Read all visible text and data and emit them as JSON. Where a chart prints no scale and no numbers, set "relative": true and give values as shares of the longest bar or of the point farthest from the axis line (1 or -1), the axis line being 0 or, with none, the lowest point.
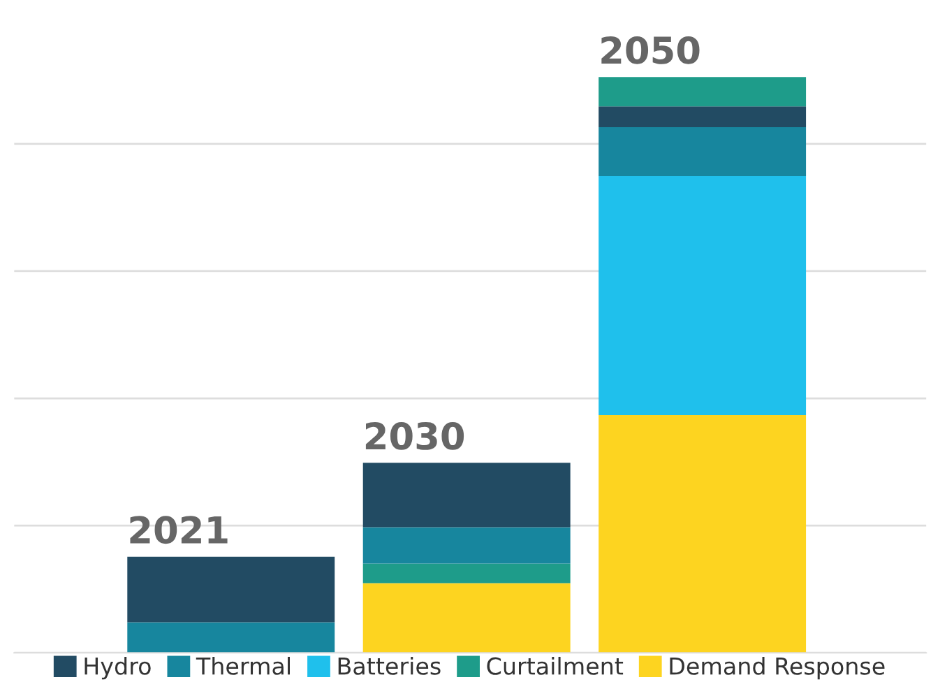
{
  "chart_data": {
    "type": "bar",
    "stacked": true,
    "relative": true,
    "categories": [
      "2021",
      "2030",
      "2050"
    ],
    "series": [
      {
        "name": "Demand Response",
        "color": "#fdd420",
        "values": [
          null,
          0.121,
          0.413
        ]
      },
      {
        "name": "Curtailment",
        "color": "#1e9c8a",
        "values": [
          null,
          0.034,
          null
        ]
      },
      {
        "name": "Batteries",
        "color": "#1fc0ec",
        "values": [
          null,
          null,
          0.415
        ]
      },
      {
        "name": "Thermal",
        "color": "#17869e",
        "values": [
          0.053,
          0.063,
          0.085
        ]
      },
      {
        "name": "Hydro",
        "color": "#224b63",
        "values": [
          0.114,
          0.112,
          0.036
        ]
      },
      {
        "color": "#1e9c8a",
        "values": [
          null,
          null,
          0.051
        ]
      }
    ],
    "legend": "bottom",
    "grid": "y",
    "tick_labels": false
  }
}
